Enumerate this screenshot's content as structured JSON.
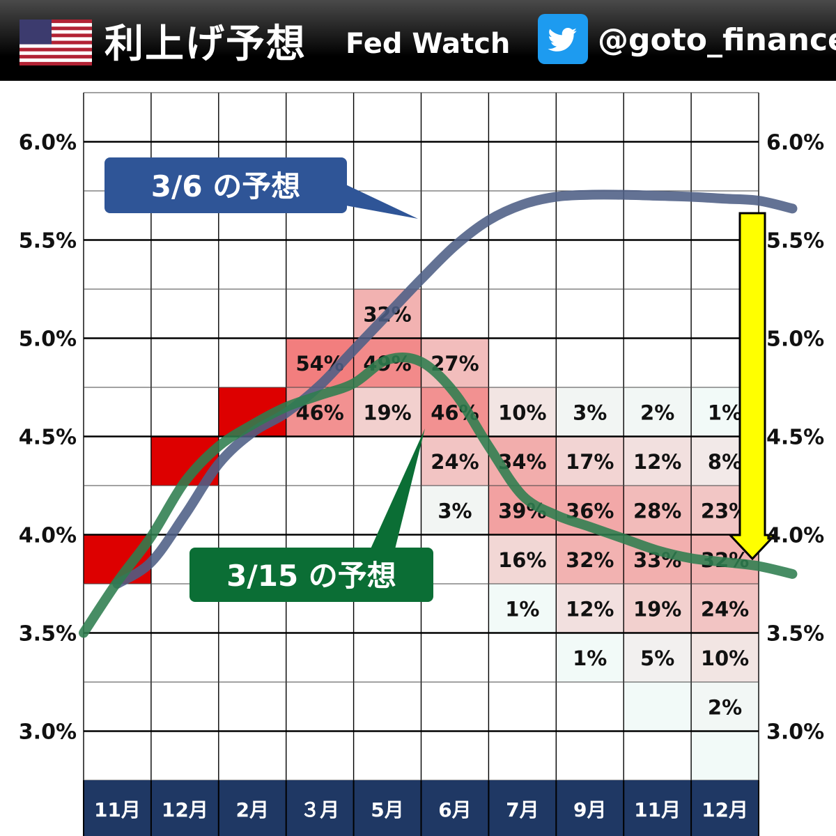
{
  "header": {
    "title": "利上げ予想",
    "subtitle": "Fed Watch",
    "handle": "@goto_finance",
    "flag_icon": "us-flag-icon",
    "social_icon": "twitter-bird-icon"
  },
  "chart_data": {
    "type": "heatmap",
    "ylim": [
      2.75,
      6.25
    ],
    "ytick_labels": [
      "3.0%",
      "3.5%",
      "4.0%",
      "4.5%",
      "5.0%",
      "5.5%",
      "6.0%"
    ],
    "ytick_values": [
      3.0,
      3.5,
      4.0,
      4.5,
      5.0,
      5.5,
      6.0
    ],
    "categories": [
      "11月",
      "12月",
      "2月",
      "３月",
      "5月",
      "6月",
      "7月",
      "9月",
      "11月",
      "12月"
    ],
    "colors": {
      "realized": "#dd0000",
      "header_bg": "#1f3864",
      "blue_line": "#4d5f85",
      "green_line": "#2e7d4f",
      "arrow": "#ffff00",
      "blue_label_bg": "#2f5597",
      "green_label_bg": "#0b6e35"
    },
    "realized_cells": [
      {
        "col": 0,
        "low": 3.75,
        "high": 4.0
      },
      {
        "col": 1,
        "low": 4.25,
        "high": 4.5
      },
      {
        "col": 2,
        "low": 4.5,
        "high": 4.75
      }
    ],
    "probability_cells": [
      {
        "col": 3,
        "low": 4.75,
        "high": 5.0,
        "label": "54%",
        "value": 54
      },
      {
        "col": 3,
        "low": 4.5,
        "high": 4.75,
        "label": "46%",
        "value": 46
      },
      {
        "col": 4,
        "low": 5.0,
        "high": 5.25,
        "label": "32%",
        "value": 32
      },
      {
        "col": 4,
        "low": 4.75,
        "high": 5.0,
        "label": "49%",
        "value": 49
      },
      {
        "col": 4,
        "low": 4.5,
        "high": 4.75,
        "label": "19%",
        "value": 19
      },
      {
        "col": 5,
        "low": 4.75,
        "high": 5.0,
        "label": "27%",
        "value": 27
      },
      {
        "col": 5,
        "low": 4.5,
        "high": 4.75,
        "label": "46%",
        "value": 46
      },
      {
        "col": 5,
        "low": 4.25,
        "high": 4.5,
        "label": "24%",
        "value": 24
      },
      {
        "col": 5,
        "low": 4.0,
        "high": 4.25,
        "label": "3%",
        "value": 3
      },
      {
        "col": 6,
        "low": 4.5,
        "high": 4.75,
        "label": "10%",
        "value": 10
      },
      {
        "col": 6,
        "low": 4.25,
        "high": 4.5,
        "label": "34%",
        "value": 34
      },
      {
        "col": 6,
        "low": 4.0,
        "high": 4.25,
        "label": "39%",
        "value": 39
      },
      {
        "col": 6,
        "low": 3.75,
        "high": 4.0,
        "label": "16%",
        "value": 16
      },
      {
        "col": 6,
        "low": 3.5,
        "high": 3.75,
        "label": "1%",
        "value": 1
      },
      {
        "col": 7,
        "low": 4.5,
        "high": 4.75,
        "label": "3%",
        "value": 3
      },
      {
        "col": 7,
        "low": 4.25,
        "high": 4.5,
        "label": "17%",
        "value": 17
      },
      {
        "col": 7,
        "low": 4.0,
        "high": 4.25,
        "label": "36%",
        "value": 36
      },
      {
        "col": 7,
        "low": 3.75,
        "high": 4.0,
        "label": "32%",
        "value": 32
      },
      {
        "col": 7,
        "low": 3.5,
        "high": 3.75,
        "label": "12%",
        "value": 12
      },
      {
        "col": 7,
        "low": 3.25,
        "high": 3.5,
        "label": "1%",
        "value": 1
      },
      {
        "col": 8,
        "low": 4.5,
        "high": 4.75,
        "label": "2%",
        "value": 2
      },
      {
        "col": 8,
        "low": 4.25,
        "high": 4.5,
        "label": "12%",
        "value": 12
      },
      {
        "col": 8,
        "low": 4.0,
        "high": 4.25,
        "label": "28%",
        "value": 28
      },
      {
        "col": 8,
        "low": 3.75,
        "high": 4.0,
        "label": "33%",
        "value": 33
      },
      {
        "col": 8,
        "low": 3.5,
        "high": 3.75,
        "label": "19%",
        "value": 19
      },
      {
        "col": 8,
        "low": 3.25,
        "high": 3.5,
        "label": "5%",
        "value": 5
      },
      {
        "col": 8,
        "low": 3.0,
        "high": 3.25,
        "label": "",
        "value": 1
      },
      {
        "col": 9,
        "low": 4.5,
        "high": 4.75,
        "label": "1%",
        "value": 1
      },
      {
        "col": 9,
        "low": 4.25,
        "high": 4.5,
        "label": "8%",
        "value": 8
      },
      {
        "col": 9,
        "low": 4.0,
        "high": 4.25,
        "label": "23%",
        "value": 23
      },
      {
        "col": 9,
        "low": 3.75,
        "high": 4.0,
        "label": "32%",
        "value": 32
      },
      {
        "col": 9,
        "low": 3.5,
        "high": 3.75,
        "label": "24%",
        "value": 24
      },
      {
        "col": 9,
        "low": 3.25,
        "high": 3.5,
        "label": "10%",
        "value": 10
      },
      {
        "col": 9,
        "low": 3.0,
        "high": 3.25,
        "label": "2%",
        "value": 2
      },
      {
        "col": 9,
        "low": 2.75,
        "high": 3.0,
        "label": "",
        "value": 1
      }
    ],
    "series": [
      {
        "name": "3/6 の予想",
        "x": [
          0.0,
          0.5,
          1.0,
          1.5,
          2.0,
          2.5,
          3.0,
          3.5,
          4.0,
          4.5,
          5.0,
          5.5,
          6.0,
          6.5,
          7.0,
          7.5,
          8.0,
          8.5,
          9.0,
          9.5,
          10.0
        ],
        "y": [
          3.75,
          3.86,
          4.1,
          4.36,
          4.52,
          4.62,
          4.76,
          4.94,
          5.12,
          5.3,
          5.47,
          5.6,
          5.68,
          5.72,
          5.73,
          5.73,
          5.725,
          5.72,
          5.71,
          5.7,
          5.66
        ]
      },
      {
        "name": "3/15 の予想",
        "x": [
          -0.5,
          0.0,
          0.5,
          1.0,
          1.5,
          2.0,
          2.5,
          3.0,
          3.5,
          4.0,
          4.5,
          5.0,
          5.5,
          6.0,
          6.5,
          7.0,
          7.5,
          8.0,
          8.5,
          9.0,
          9.5,
          10.0
        ],
        "y": [
          3.5,
          3.76,
          3.99,
          4.27,
          4.45,
          4.56,
          4.65,
          4.71,
          4.77,
          4.89,
          4.88,
          4.72,
          4.45,
          4.2,
          4.1,
          4.04,
          3.98,
          3.92,
          3.88,
          3.86,
          3.84,
          3.8
        ]
      }
    ],
    "annotations": [
      {
        "label": "3/6 の予想",
        "series": 0
      },
      {
        "label": "3/15 の予想",
        "series": 1
      }
    ]
  }
}
